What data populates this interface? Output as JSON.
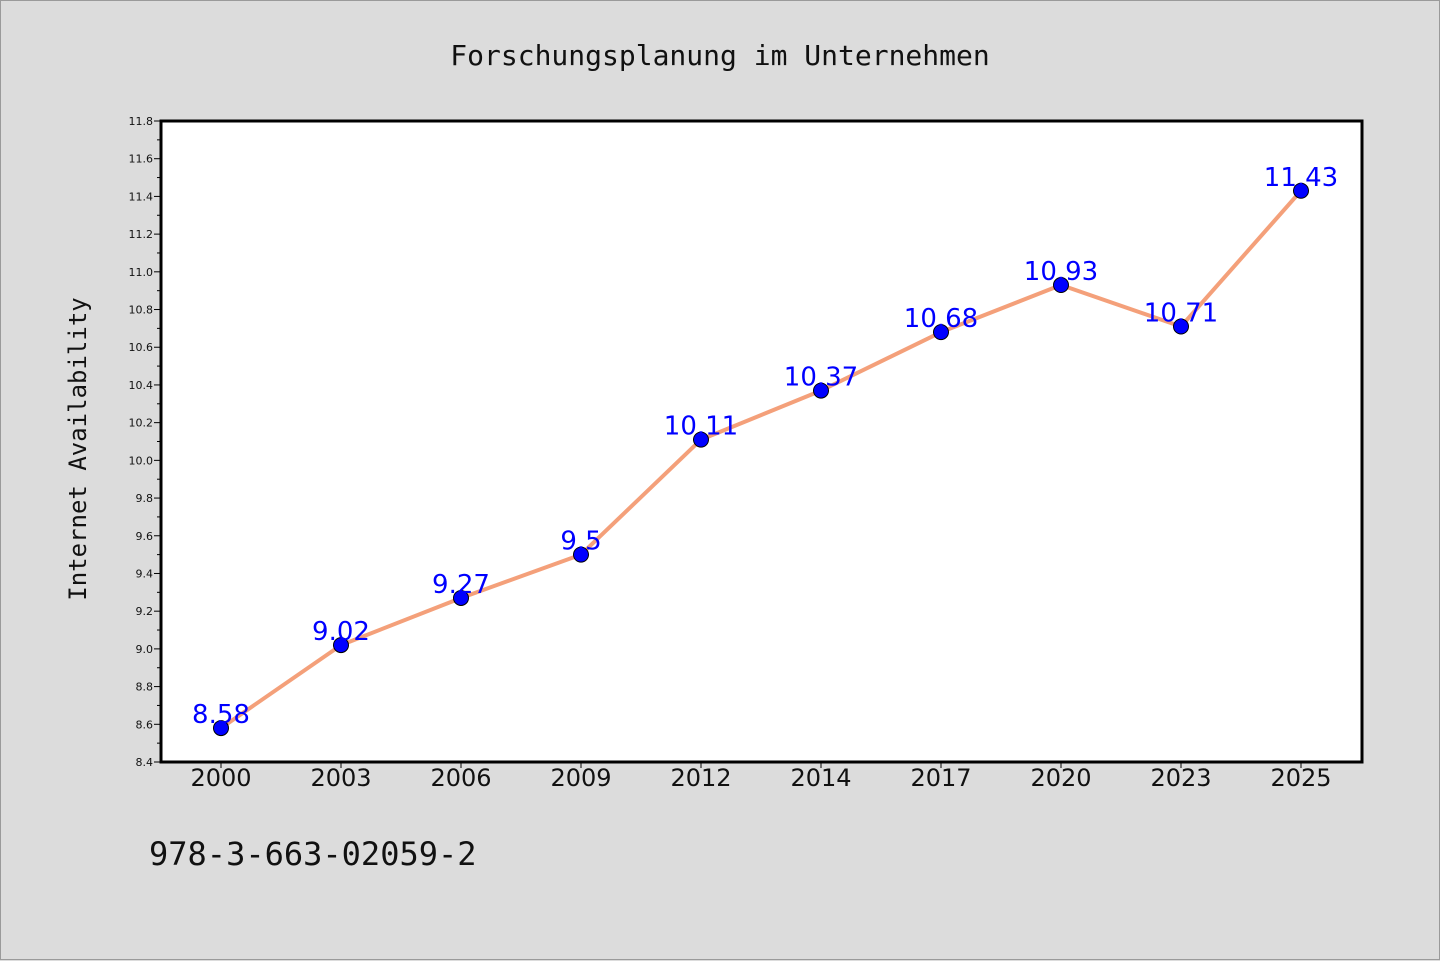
{
  "chart_data": {
    "type": "line",
    "title": "Forschungsplanung im Unternehmen",
    "xlabel": "",
    "ylabel": "Internet Availability",
    "categories": [
      "2000",
      "2003",
      "2006",
      "2009",
      "2012",
      "2014",
      "2017",
      "2020",
      "2023",
      "2025"
    ],
    "series": [
      {
        "values": [
          8.58,
          9.02,
          9.27,
          9.5,
          10.11,
          10.37,
          10.68,
          10.93,
          10.71,
          11.43
        ],
        "labels": [
          "8.58",
          "9.02",
          "9.27",
          "9.5",
          "10.11",
          "10.37",
          "10.68",
          "10.93",
          "10.71",
          "11.43"
        ],
        "line_color": "#f4a07a",
        "marker_color": "#0000ff"
      }
    ],
    "ylim": [
      8.4,
      11.8
    ],
    "yticks": [
      "8.4",
      "8.6",
      "8.8",
      "9.0",
      "9.2",
      "9.4",
      "9.6",
      "9.8",
      "10.0",
      "10.2",
      "10.4",
      "10.6",
      "10.8",
      "11.0",
      "11.2",
      "11.4",
      "11.6",
      "11.8"
    ],
    "grid": false
  },
  "footer": {
    "isbn": "978-3-663-02059-2"
  },
  "colors": {
    "background": "#dcdcdc",
    "plot_background": "#ffffff",
    "line": "#f4a07a",
    "marker": "#0000ff",
    "data_label": "#0000ff"
  }
}
